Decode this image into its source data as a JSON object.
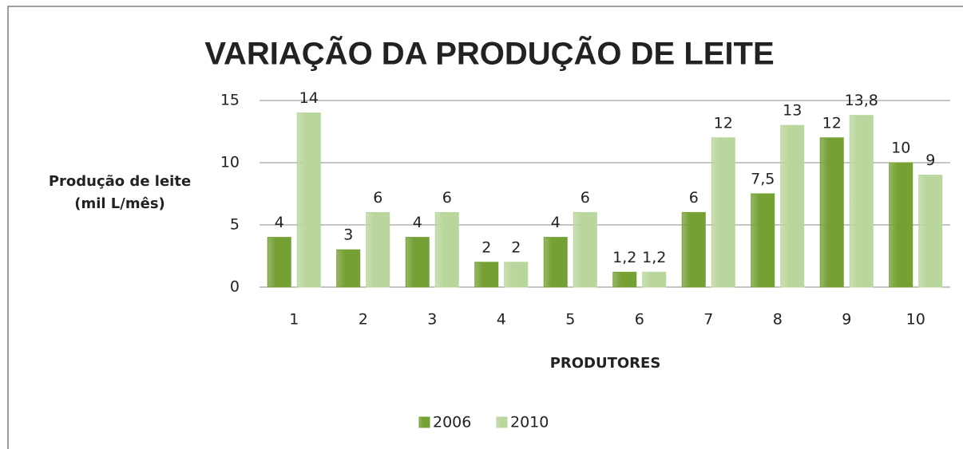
{
  "chart_data": {
    "type": "bar",
    "title": "VARIAÇÃO DA PRODUÇÃO DE LEITE",
    "y_label": [
      "Produção de leite",
      "(mil L/mês)"
    ],
    "x_label": "PRODUTORES",
    "categories": [
      "1",
      "2",
      "3",
      "4",
      "5",
      "6",
      "7",
      "8",
      "9",
      "10"
    ],
    "series": [
      {
        "name": "2006",
        "color": "#74a034",
        "values": [
          4,
          3,
          4,
          2,
          4,
          1.2,
          6,
          7.5,
          12,
          10
        ],
        "value_labels": [
          "4",
          "3",
          "4",
          "2",
          "4",
          "1,2",
          "6",
          "7,5",
          "12",
          "10"
        ]
      },
      {
        "name": "2010",
        "color": "#b9d69c",
        "values": [
          14,
          6,
          6,
          2,
          6,
          1.2,
          12,
          13,
          13.8,
          9
        ],
        "value_labels": [
          "14",
          "6",
          "6",
          "2",
          "6",
          "1,2",
          "12",
          "13",
          "13,8",
          "9"
        ]
      }
    ],
    "ylim": [
      0,
      15
    ],
    "yticks": [
      0,
      5,
      10,
      15
    ],
    "grid": true,
    "legend": "bottom"
  }
}
